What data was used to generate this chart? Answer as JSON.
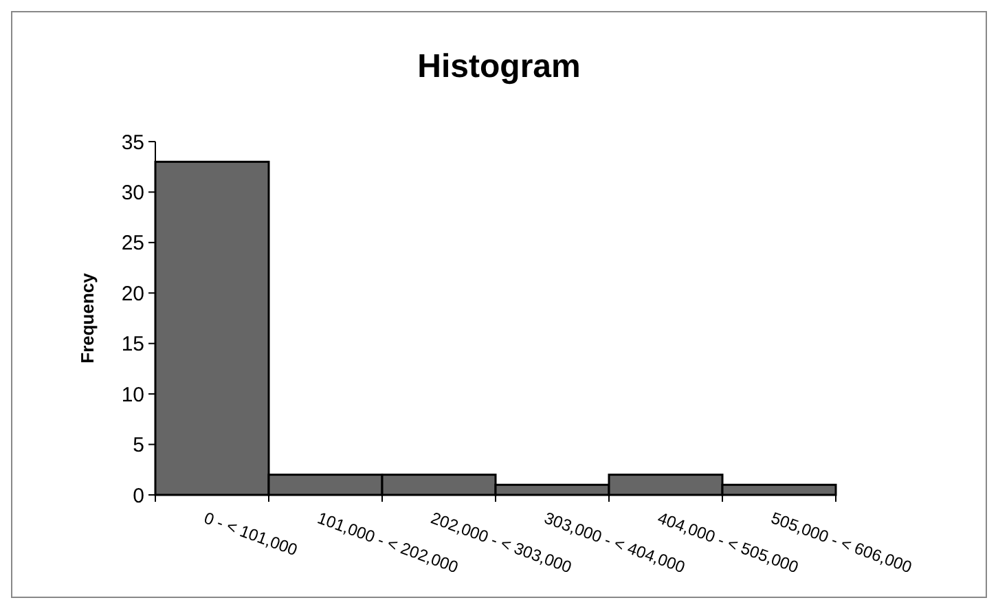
{
  "chart_data": {
    "type": "bar",
    "title": "Histogram",
    "ylabel": "Frequency",
    "categories": [
      "0 - < 101,000",
      "101,000 - < 202,000",
      "202,000 - < 303,000",
      "303,000 - < 404,000",
      "404,000 - < 505,000",
      "505,000 - < 606,000"
    ],
    "values": [
      33,
      2,
      2,
      1,
      2,
      1
    ],
    "color": "#666666",
    "ylim": [
      0,
      35
    ],
    "yticks": [
      0,
      5,
      10,
      15,
      20,
      25,
      30,
      35
    ],
    "grid": false
  }
}
